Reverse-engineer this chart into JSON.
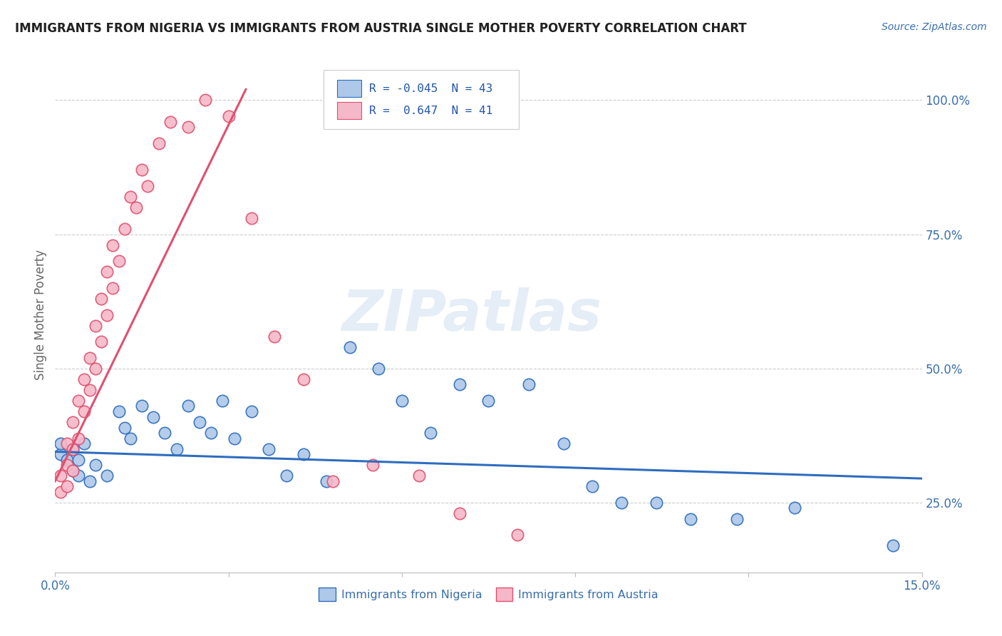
{
  "title": "IMMIGRANTS FROM NIGERIA VS IMMIGRANTS FROM AUSTRIA SINGLE MOTHER POVERTY CORRELATION CHART",
  "source": "Source: ZipAtlas.com",
  "ylabel": "Single Mother Poverty",
  "xlim": [
    0.0,
    0.15
  ],
  "ylim": [
    0.12,
    1.08
  ],
  "xtick_positions": [
    0.0,
    0.03,
    0.06,
    0.09,
    0.12,
    0.15
  ],
  "xticklabels": [
    "0.0%",
    "",
    "",
    "",
    "",
    "15.0%"
  ],
  "yticks_right": [
    0.25,
    0.5,
    0.75,
    1.0
  ],
  "ytick_labels_right": [
    "25.0%",
    "50.0%",
    "75.0%",
    "100.0%"
  ],
  "legend_R1": "-0.045",
  "legend_N1": "43",
  "legend_R2": "0.647",
  "legend_N2": "41",
  "color_nigeria": "#adc8e8",
  "color_austria": "#f5b8c8",
  "color_nigeria_line": "#2e6dbe",
  "color_austria_line": "#e05070",
  "watermark": "ZIPatlas",
  "nigeria_x": [
    0.001,
    0.001,
    0.002,
    0.003,
    0.003,
    0.004,
    0.004,
    0.005,
    0.006,
    0.007,
    0.009,
    0.011,
    0.012,
    0.013,
    0.015,
    0.017,
    0.019,
    0.021,
    0.023,
    0.025,
    0.027,
    0.029,
    0.031,
    0.034,
    0.037,
    0.04,
    0.043,
    0.047,
    0.051,
    0.056,
    0.06,
    0.065,
    0.07,
    0.075,
    0.082,
    0.088,
    0.093,
    0.098,
    0.104,
    0.11,
    0.118,
    0.128,
    0.145
  ],
  "nigeria_y": [
    0.34,
    0.36,
    0.33,
    0.31,
    0.35,
    0.3,
    0.33,
    0.36,
    0.29,
    0.32,
    0.3,
    0.42,
    0.39,
    0.37,
    0.43,
    0.41,
    0.38,
    0.35,
    0.43,
    0.4,
    0.38,
    0.44,
    0.37,
    0.42,
    0.35,
    0.3,
    0.34,
    0.29,
    0.54,
    0.5,
    0.44,
    0.38,
    0.47,
    0.44,
    0.47,
    0.36,
    0.28,
    0.25,
    0.25,
    0.22,
    0.22,
    0.24,
    0.17
  ],
  "austria_x": [
    0.001,
    0.001,
    0.002,
    0.002,
    0.002,
    0.003,
    0.003,
    0.003,
    0.004,
    0.004,
    0.005,
    0.005,
    0.006,
    0.006,
    0.007,
    0.007,
    0.008,
    0.008,
    0.009,
    0.009,
    0.01,
    0.01,
    0.011,
    0.012,
    0.013,
    0.014,
    0.015,
    0.016,
    0.018,
    0.02,
    0.023,
    0.026,
    0.03,
    0.034,
    0.038,
    0.043,
    0.048,
    0.055,
    0.063,
    0.07,
    0.08
  ],
  "austria_y": [
    0.27,
    0.3,
    0.28,
    0.32,
    0.36,
    0.31,
    0.35,
    0.4,
    0.37,
    0.44,
    0.42,
    0.48,
    0.46,
    0.52,
    0.5,
    0.58,
    0.55,
    0.63,
    0.6,
    0.68,
    0.65,
    0.73,
    0.7,
    0.76,
    0.82,
    0.8,
    0.87,
    0.84,
    0.92,
    0.96,
    0.95,
    1.0,
    0.97,
    0.78,
    0.56,
    0.48,
    0.29,
    0.32,
    0.3,
    0.23,
    0.19
  ],
  "austria_trendline_x": [
    0.0,
    0.033
  ],
  "austria_trendline_y": [
    0.29,
    1.02
  ],
  "nigeria_trendline_x": [
    0.0,
    0.15
  ],
  "nigeria_trendline_y": [
    0.345,
    0.295
  ]
}
